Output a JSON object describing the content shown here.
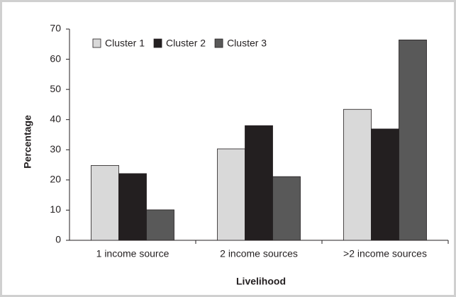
{
  "chart_data": {
    "type": "bar",
    "x_label": "Livelihood",
    "y_label": "Percentage",
    "categories": [
      "1 income source",
      "2 income sources",
      ">2 income sources"
    ],
    "series": [
      {
        "name": "Cluster 1",
        "color": "#d9d9d9",
        "values": [
          24.8,
          30.3,
          43.4
        ]
      },
      {
        "name": "Cluster 2",
        "color": "#231f20",
        "values": [
          22.1,
          38.0,
          36.9
        ]
      },
      {
        "name": "Cluster 3",
        "color": "#595959",
        "values": [
          10.1,
          21.1,
          66.4
        ]
      }
    ],
    "ylim": [
      0,
      70
    ],
    "yticks": [
      0,
      10,
      20,
      30,
      40,
      50,
      60,
      70
    ],
    "grid": false,
    "legend": "top-left"
  }
}
